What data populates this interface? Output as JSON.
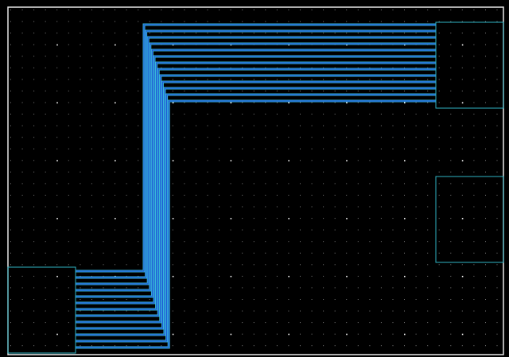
{
  "colors": {
    "background": "#000000",
    "boundary": "#e8e8e8",
    "grid_dot_minor": "#7f7f7f",
    "grid_dot_major": "#ffffff",
    "pin_outline": "#2fb3c4",
    "wire_fill": "#1f57d6",
    "wire_edge": "#36b6d8"
  },
  "layout_view": {
    "tool": "pcb-routing-editor",
    "grid": "dotted",
    "wire_bundle_count": 13,
    "pads": [
      {
        "name": "pad-top-right",
        "type": "connector-pad"
      },
      {
        "name": "pad-middle-right",
        "type": "connector-pad"
      },
      {
        "name": "pad-bottom-left",
        "type": "connector-pad"
      }
    ],
    "routes": "bus-routing-bottom-left-to-top-right"
  }
}
